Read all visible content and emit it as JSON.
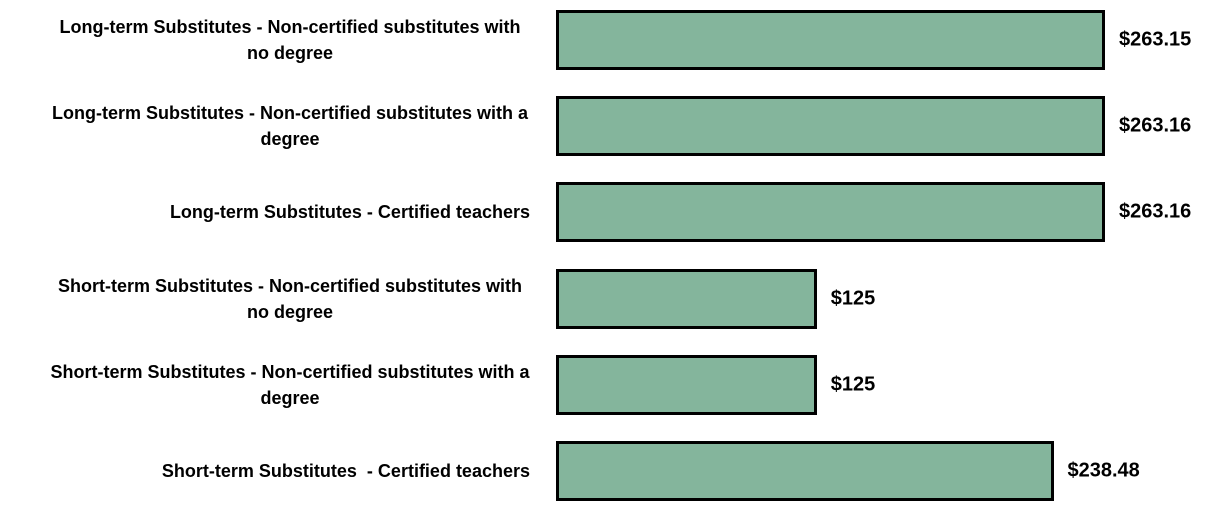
{
  "chart_data": {
    "type": "bar",
    "orientation": "horizontal",
    "color": "#84b59c",
    "categories": [
      "Long-term Substitutes - Non-certified substitutes with no degree",
      "Long-term Substitutes - Non-certified substitutes with a degree",
      "Long-term Substitutes - Certified teachers",
      "Short-term Substitutes - Non-certified substitutes with no degree",
      "Short-term Substitutes - Non-certified substitutes with a degree",
      "Short-term Substitutes  - Certified teachers"
    ],
    "values": [
      263.15,
      263.16,
      263.16,
      125,
      125,
      238.48
    ],
    "value_labels": [
      "$263.15",
      "$263.16",
      "$263.16",
      "$125",
      "$125",
      "$238.48"
    ]
  }
}
